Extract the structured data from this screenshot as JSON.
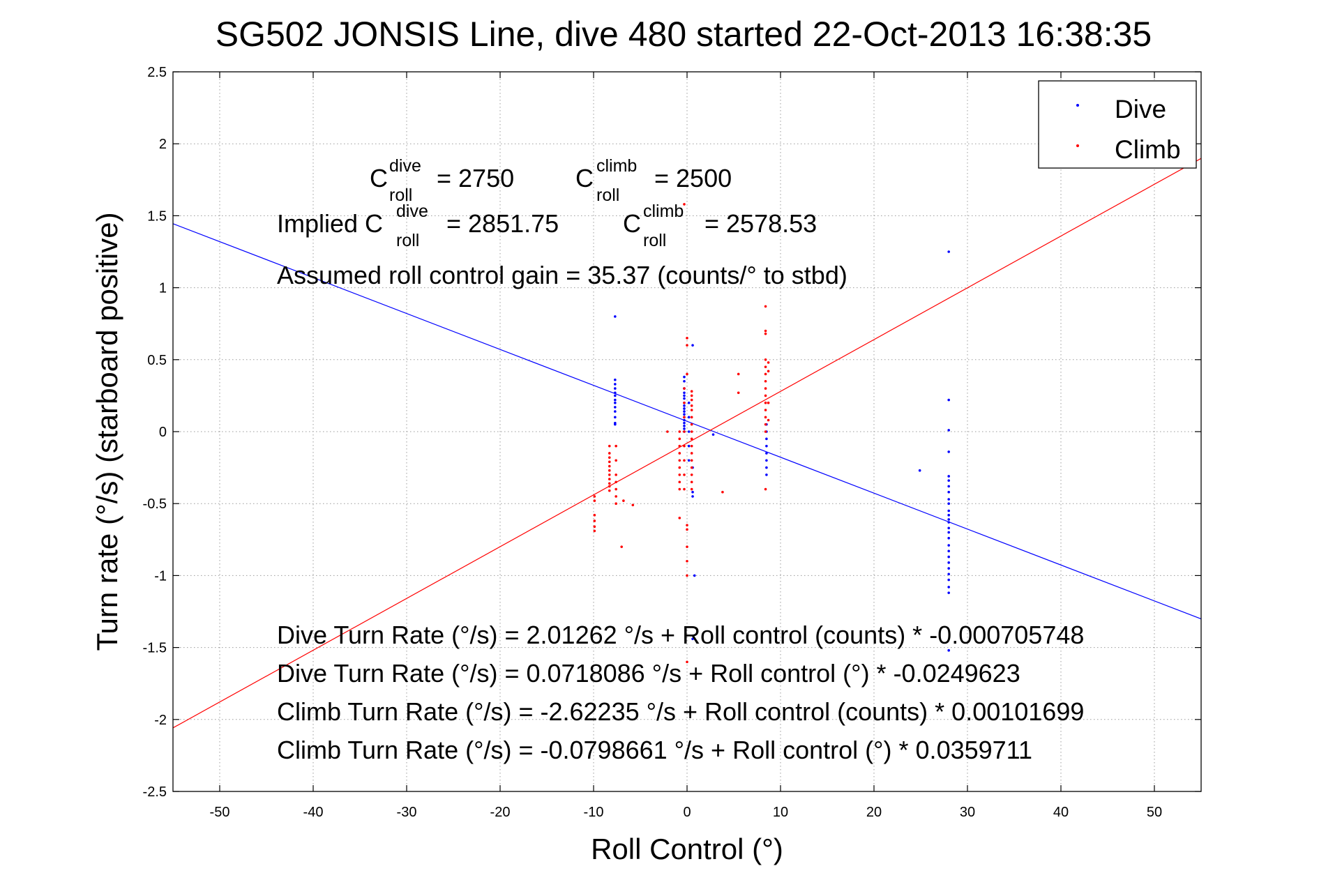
{
  "chart_data": {
    "type": "scatter",
    "title": "SG502 JONSIS Line, dive 480 started 22-Oct-2013 16:38:35",
    "xlabel": "Roll Control (°)",
    "ylabel": "Turn rate (°/s) (starboard positive)",
    "xlim": [
      -55,
      55
    ],
    "ylim": [
      -2.5,
      2.5
    ],
    "xticks": [
      -50,
      -40,
      -30,
      -20,
      -10,
      0,
      10,
      20,
      30,
      40,
      50
    ],
    "yticks": [
      -2.5,
      -2,
      -1.5,
      -1,
      -0.5,
      0,
      0.5,
      1,
      1.5,
      2,
      2.5
    ],
    "ytick_labels": [
      "-2.5",
      "-2",
      "-1.5",
      "-1",
      "-0.5",
      "0",
      "0.5",
      "1",
      "1.5",
      "2",
      "2.5"
    ],
    "grid": true,
    "legend_position": "top-right",
    "series": [
      {
        "name": "Dive",
        "color": "#0000ff",
        "points": [
          [
            -7.7,
            0.8
          ],
          [
            -7.7,
            0.36
          ],
          [
            -7.7,
            0.33
          ],
          [
            -7.7,
            0.3
          ],
          [
            -7.7,
            0.27
          ],
          [
            -7.7,
            0.25
          ],
          [
            -7.7,
            0.22
          ],
          [
            -7.7,
            0.2
          ],
          [
            -7.7,
            0.17
          ],
          [
            -7.7,
            0.14
          ],
          [
            -7.7,
            0.1
          ],
          [
            -7.7,
            0.06
          ],
          [
            -7.7,
            0.05
          ],
          [
            -0.3,
            0.38
          ],
          [
            -0.3,
            0.35
          ],
          [
            -0.3,
            0.3
          ],
          [
            -0.3,
            0.27
          ],
          [
            -0.3,
            0.25
          ],
          [
            -0.3,
            0.23
          ],
          [
            -0.3,
            0.2
          ],
          [
            -0.3,
            0.18
          ],
          [
            -0.3,
            0.16
          ],
          [
            -0.3,
            0.14
          ],
          [
            -0.3,
            0.12
          ],
          [
            -0.3,
            0.1
          ],
          [
            -0.3,
            0.08
          ],
          [
            -0.3,
            0.06
          ],
          [
            -0.3,
            0.04
          ],
          [
            -0.3,
            0.02
          ],
          [
            -0.3,
            0.0
          ],
          [
            0.2,
            0.2
          ],
          [
            0.2,
            0.1
          ],
          [
            0.2,
            0.0
          ],
          [
            0.2,
            -0.1
          ],
          [
            0.2,
            -0.2
          ],
          [
            0.6,
            0.6
          ],
          [
            0.6,
            -0.25
          ],
          [
            0.6,
            -0.42
          ],
          [
            0.6,
            -0.45
          ],
          [
            0.8,
            -1.0
          ],
          [
            0.6,
            -1.44
          ],
          [
            2.8,
            -0.02
          ],
          [
            8.5,
            0.05
          ],
          [
            8.5,
            0.0
          ],
          [
            8.5,
            -0.05
          ],
          [
            8.5,
            -0.1
          ],
          [
            8.5,
            -0.15
          ],
          [
            8.5,
            -0.2
          ],
          [
            8.5,
            -0.25
          ],
          [
            8.5,
            -0.3
          ],
          [
            24.9,
            -0.27
          ],
          [
            28,
            1.25
          ],
          [
            28,
            0.22
          ],
          [
            28,
            0.01
          ],
          [
            28,
            -0.14
          ],
          [
            28,
            -0.31
          ],
          [
            28,
            -0.34
          ],
          [
            28,
            -0.38
          ],
          [
            28,
            -0.42
          ],
          [
            28,
            -0.47
          ],
          [
            28,
            -0.5
          ],
          [
            28,
            -0.55
          ],
          [
            28,
            -0.58
          ],
          [
            28,
            -0.61
          ],
          [
            28,
            -0.63
          ],
          [
            28,
            -0.67
          ],
          [
            28,
            -0.7
          ],
          [
            28,
            -0.74
          ],
          [
            28,
            -0.79
          ],
          [
            28,
            -0.83
          ],
          [
            28,
            -0.87
          ],
          [
            28,
            -0.91
          ],
          [
            28,
            -0.95
          ],
          [
            28,
            -0.99
          ],
          [
            28,
            -1.03
          ],
          [
            28,
            -1.08
          ],
          [
            28,
            -1.12
          ],
          [
            28,
            -1.52
          ]
        ],
        "fit": {
          "intercept": 0.0718086,
          "slope": -0.0249623
        }
      },
      {
        "name": "Climb",
        "color": "#ff0000",
        "points": [
          [
            -9.9,
            -0.45
          ],
          [
            -9.9,
            -0.48
          ],
          [
            -9.9,
            -0.58
          ],
          [
            -9.9,
            -0.62
          ],
          [
            -9.9,
            -0.66
          ],
          [
            -9.9,
            -0.69
          ],
          [
            -8.3,
            -0.1
          ],
          [
            -8.3,
            -0.15
          ],
          [
            -8.3,
            -0.18
          ],
          [
            -8.3,
            -0.21
          ],
          [
            -8.3,
            -0.24
          ],
          [
            -8.3,
            -0.27
          ],
          [
            -8.3,
            -0.3
          ],
          [
            -8.3,
            -0.33
          ],
          [
            -8.3,
            -0.36
          ],
          [
            -8.3,
            -0.38
          ],
          [
            -8.3,
            -0.41
          ],
          [
            -7.6,
            -0.1
          ],
          [
            -7.6,
            -0.2
          ],
          [
            -7.6,
            -0.3
          ],
          [
            -7.6,
            -0.35
          ],
          [
            -7.6,
            -0.4
          ],
          [
            -7.6,
            -0.45
          ],
          [
            -7.6,
            -0.5
          ],
          [
            -7.0,
            -0.8
          ],
          [
            -6.8,
            -0.48
          ],
          [
            -5.8,
            -0.51
          ],
          [
            -2.1,
            -0.0
          ],
          [
            -0.8,
            0.0
          ],
          [
            -0.8,
            -0.05
          ],
          [
            -0.8,
            -0.1
          ],
          [
            -0.8,
            -0.15
          ],
          [
            -0.8,
            -0.2
          ],
          [
            -0.8,
            -0.25
          ],
          [
            -0.8,
            -0.3
          ],
          [
            -0.8,
            -0.35
          ],
          [
            -0.8,
            -0.4
          ],
          [
            -0.8,
            -0.6
          ],
          [
            -0.3,
            1.58
          ],
          [
            -0.3,
            0.3
          ],
          [
            -0.3,
            0.2
          ],
          [
            -0.3,
            0.1
          ],
          [
            -0.3,
            0.0
          ],
          [
            -0.3,
            -0.1
          ],
          [
            -0.3,
            -0.2
          ],
          [
            -0.3,
            -0.3
          ],
          [
            -0.3,
            -0.4
          ],
          [
            0.0,
            0.65
          ],
          [
            0.0,
            0.6
          ],
          [
            0.0,
            0.4
          ],
          [
            0.0,
            -0.65
          ],
          [
            0.0,
            -0.68
          ],
          [
            0.0,
            -0.8
          ],
          [
            0.0,
            -0.9
          ],
          [
            0.0,
            -1.0
          ],
          [
            0.0,
            -1.6
          ],
          [
            0.5,
            0.28
          ],
          [
            0.5,
            0.25
          ],
          [
            0.5,
            0.22
          ],
          [
            0.5,
            0.18
          ],
          [
            0.5,
            0.15
          ],
          [
            0.5,
            0.1
          ],
          [
            0.5,
            0.05
          ],
          [
            0.5,
            0.0
          ],
          [
            0.5,
            -0.05
          ],
          [
            0.5,
            -0.1
          ],
          [
            0.5,
            -0.15
          ],
          [
            0.5,
            -0.2
          ],
          [
            0.5,
            -0.25
          ],
          [
            0.5,
            -0.3
          ],
          [
            0.5,
            -0.35
          ],
          [
            0.5,
            -0.4
          ],
          [
            3.8,
            -0.42
          ],
          [
            5.5,
            0.4
          ],
          [
            5.5,
            0.27
          ],
          [
            8.4,
            0.87
          ],
          [
            8.4,
            0.7
          ],
          [
            8.4,
            0.68
          ],
          [
            8.4,
            0.5
          ],
          [
            8.4,
            0.45
          ],
          [
            8.4,
            0.4
          ],
          [
            8.4,
            0.35
          ],
          [
            8.4,
            0.3
          ],
          [
            8.4,
            0.25
          ],
          [
            8.4,
            0.2
          ],
          [
            8.4,
            0.15
          ],
          [
            8.4,
            0.1
          ],
          [
            8.4,
            0.05
          ],
          [
            8.4,
            0.0
          ],
          [
            8.4,
            -0.4
          ],
          [
            8.7,
            0.48
          ],
          [
            8.7,
            0.42
          ],
          [
            8.7,
            0.2
          ],
          [
            8.7,
            0.08
          ]
        ],
        "fit": {
          "intercept": -0.0798661,
          "slope": 0.0359711
        }
      }
    ],
    "annotations": {
      "c_dive_base": "C",
      "c_dive_sup": "dive",
      "c_dive_sub": "roll",
      "c_dive_value": "= 2750",
      "c_climb_base": "C",
      "c_climb_sup": "climb",
      "c_climb_sub": "roll",
      "c_climb_value": "= 2500",
      "implied_prefix": "Implied C",
      "implied_dive_sup": "dive",
      "implied_dive_sub": "roll",
      "implied_dive_value": "= 2851.75",
      "implied_climb_base": "C",
      "implied_climb_sup": "climb",
      "implied_climb_sub": "roll",
      "implied_climb_value": "= 2578.53",
      "gain": "Assumed roll control gain = 35.37 (counts/° to stbd)",
      "eq1": "Dive Turn Rate (°/s) = 2.01262 °/s + Roll control (counts) * -0.000705748",
      "eq2": "Dive Turn Rate (°/s) = 0.0718086 °/s + Roll control (°) * -0.0249623",
      "eq3": "Climb Turn Rate (°/s) = -2.62235 °/s + Roll control (counts) * 0.00101699",
      "eq4": "Climb Turn Rate (°/s) = -0.0798661 °/s + Roll control (°) * 0.0359711"
    }
  }
}
